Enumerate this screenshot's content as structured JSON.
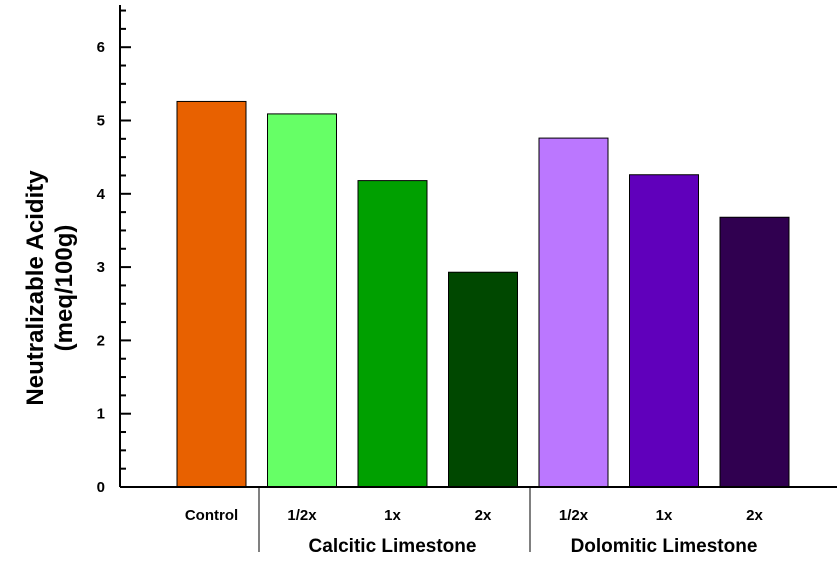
{
  "chart_data": {
    "type": "bar",
    "title": "",
    "ylabel_lines": [
      "Neutralizable Acidity",
      "(meq/100g)"
    ],
    "xlabel": "",
    "ylim": [
      0,
      6.5
    ],
    "yticks": [
      "0",
      "1",
      "2",
      "3",
      "4",
      "5",
      "6"
    ],
    "categories": [
      "Control",
      "1/2x",
      "1x",
      "2x",
      "1/2x",
      "1x",
      "2x"
    ],
    "values": [
      5.26,
      5.09,
      4.18,
      2.93,
      4.76,
      4.26,
      3.68
    ],
    "colors": [
      "#E86100",
      "#66FF66",
      "#00A000",
      "#004800",
      "#BB77FF",
      "#6000BB",
      "#300050"
    ],
    "groups": [
      {
        "label": "Calcitic Limestone",
        "start": 1,
        "end": 3
      },
      {
        "label": "Dolomitic Limestone",
        "start": 4,
        "end": 6
      }
    ],
    "grid": false,
    "legend": "none"
  }
}
